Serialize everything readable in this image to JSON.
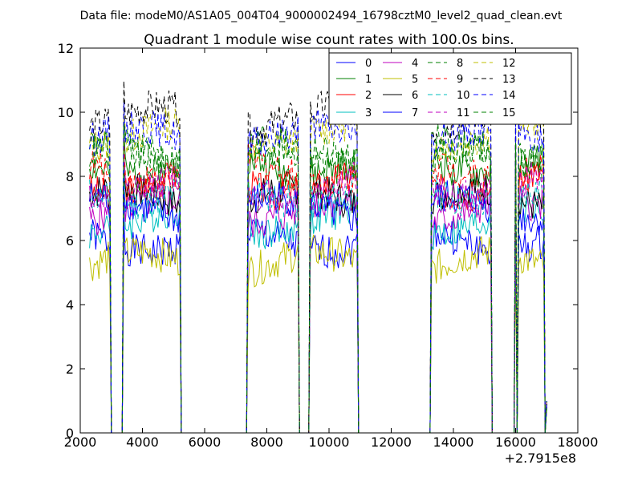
{
  "chart_data": {
    "type": "line",
    "suptitle": "Data file: modeM0/AS1A05_004T04_9000002494_16798cztM0_level2_quad_clean.evt",
    "title": "Quadrant 1 module wise count rates with 100.0s bins.",
    "xlabel": "",
    "ylabel": "",
    "xlim": [
      2000,
      18000
    ],
    "ylim": [
      0,
      12
    ],
    "x_ticks": [
      2000,
      4000,
      6000,
      8000,
      10000,
      12000,
      14000,
      16000,
      18000
    ],
    "x_tick_labels": [
      "2000",
      "4000",
      "6000",
      "8000",
      "10000",
      "12000",
      "14000",
      "16000",
      "18000"
    ],
    "y_ticks": [
      0,
      2,
      4,
      6,
      8,
      10,
      12
    ],
    "y_tick_labels": [
      "0",
      "2",
      "4",
      "6",
      "8",
      "10",
      "12"
    ],
    "x_offset_label": "+2.7915e8",
    "grid": false,
    "legend_location": "upper right",
    "legend_columns": 4,
    "segments": [
      {
        "x_start": 2300,
        "x_end": 2900
      },
      {
        "x_start": 3400,
        "x_end": 5200
      },
      {
        "x_start": 7400,
        "x_end": 9000
      },
      {
        "x_start": 9400,
        "x_end": 10900
      },
      {
        "x_start": 13300,
        "x_end": 15200
      },
      {
        "x_start": 16100,
        "x_end": 16900
      }
    ],
    "gaps": [
      {
        "x_start": 3000,
        "x_end": 3200
      },
      {
        "x_start": 5400,
        "x_end": 7300
      },
      {
        "x_start": 9200,
        "x_end": 9300
      },
      {
        "x_start": 11100,
        "x_end": 13200
      },
      {
        "x_start": 15400,
        "x_end": 15900
      }
    ],
    "spikes": [
      {
        "x": 2950,
        "factor": 0.95
      },
      {
        "x": 3400,
        "factor": 1.12
      },
      {
        "x": 16000,
        "factor": 1.05
      }
    ],
    "series": [
      {
        "name": "0",
        "color": "#0000ff",
        "dashed": false,
        "level": 6.0
      },
      {
        "name": "1",
        "color": "#008000",
        "dashed": false,
        "level": 8.4
      },
      {
        "name": "2",
        "color": "#ff0000",
        "dashed": false,
        "level": 7.8
      },
      {
        "name": "3",
        "color": "#00bfbf",
        "dashed": false,
        "level": 6.6
      },
      {
        "name": "4",
        "color": "#bf00bf",
        "dashed": false,
        "level": 6.9
      },
      {
        "name": "5",
        "color": "#bfbf00",
        "dashed": false,
        "level": 5.3
      },
      {
        "name": "6",
        "color": "#000000",
        "dashed": false,
        "level": 7.3
      },
      {
        "name": "7",
        "color": "#0000ff",
        "dashed": false,
        "level": 7.0
      },
      {
        "name": "8",
        "color": "#008000",
        "dashed": true,
        "level": 8.8
      },
      {
        "name": "9",
        "color": "#ff0000",
        "dashed": true,
        "level": 8.2
      },
      {
        "name": "10",
        "color": "#00bfbf",
        "dashed": true,
        "level": 7.5
      },
      {
        "name": "11",
        "color": "#bf00bf",
        "dashed": true,
        "level": 7.7
      },
      {
        "name": "12",
        "color": "#bfbf00",
        "dashed": true,
        "level": 9.3
      },
      {
        "name": "13",
        "color": "#000000",
        "dashed": true,
        "level": 9.8
      },
      {
        "name": "14",
        "color": "#0000ff",
        "dashed": true,
        "level": 9.2
      },
      {
        "name": "15",
        "color": "#008000",
        "dashed": true,
        "level": 8.6
      }
    ]
  }
}
